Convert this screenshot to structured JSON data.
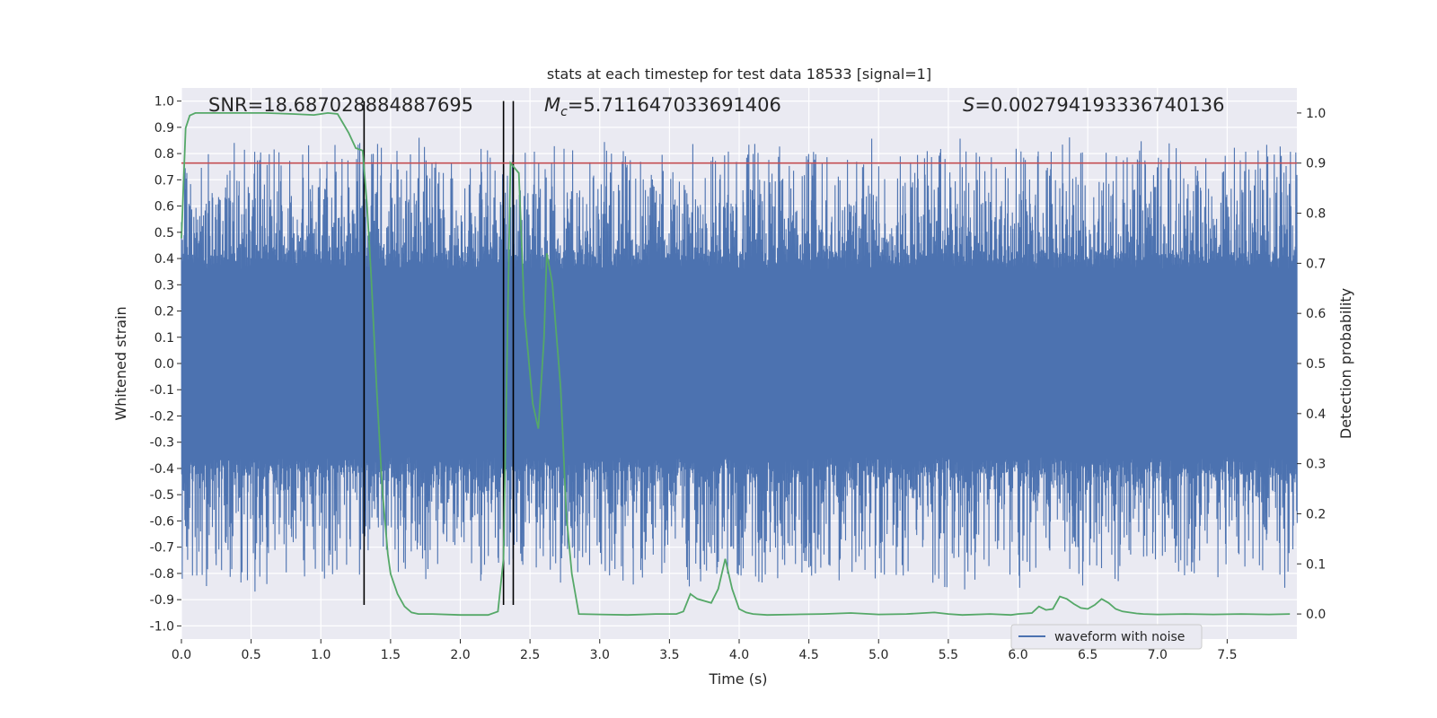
{
  "chart_data": {
    "type": "line",
    "title": "stats at each timestep for test data 18533 [signal=1]",
    "xlabel": "Time (s)",
    "ylabel": "Whitened strain",
    "ylabel_right": "Detection probability",
    "xlim": [
      0,
      8
    ],
    "ylim": [
      -1.05,
      1.05
    ],
    "ylim_right": [
      -0.05,
      1.05
    ],
    "x_ticks": [
      0.0,
      0.5,
      1.0,
      1.5,
      2.0,
      2.5,
      3.0,
      3.5,
      4.0,
      4.5,
      5.0,
      5.5,
      6.0,
      6.5,
      7.0,
      7.5
    ],
    "x_tick_labels": [
      "0.0",
      "0.5",
      "1.0",
      "1.5",
      "2.0",
      "2.5",
      "3.0",
      "3.5",
      "4.0",
      "4.5",
      "5.0",
      "5.5",
      "6.0",
      "6.5",
      "7.0",
      "7.5"
    ],
    "y_ticks": [
      1.0,
      0.9,
      0.8,
      0.7,
      0.6,
      0.5,
      0.4,
      0.3,
      0.2,
      0.1,
      0.0,
      -0.1,
      -0.2,
      -0.3,
      -0.4,
      -0.5,
      -0.6,
      -0.7,
      -0.8,
      -0.9,
      -1.0
    ],
    "y_tick_labels": [
      "1.0",
      "0.9",
      "0.8",
      "0.7",
      "0.6",
      "0.5",
      "0.4",
      "0.3",
      "0.2",
      "0.1",
      "0.0",
      "-0.1",
      "-0.2",
      "-0.3",
      "-0.4",
      "-0.5",
      "-0.6",
      "-0.7",
      "-0.8",
      "-0.9",
      "-1.0"
    ],
    "y_right_ticks": [
      1.0,
      0.9,
      0.8,
      0.7,
      0.6,
      0.5,
      0.4,
      0.3,
      0.2,
      0.1,
      0.0
    ],
    "y_right_tick_labels": [
      "1.0",
      "0.9",
      "0.8",
      "0.7",
      "0.6",
      "0.5",
      "0.4",
      "0.3",
      "0.2",
      "0.1",
      "0.0"
    ],
    "annotations": {
      "snr": "SNR=18.687028884887695",
      "mc_symbol": "M",
      "mc_subscript": "c",
      "mc_value": "=5.711647033691406",
      "s_symbol": "S",
      "s_value": "=0.002794193336740136"
    },
    "threshold": {
      "axis": "right",
      "value": 0.9,
      "color": "#c44e52"
    },
    "vertical_lines": {
      "x": [
        1.31,
        2.31,
        2.38
      ],
      "y_range": [
        -0.92,
        1.0
      ],
      "color": "#000000"
    },
    "series": [
      {
        "name": "waveform with noise",
        "axis": "left",
        "color": "#4c72b0",
        "kind": "dense-noise",
        "sample_rate_hz": 2048,
        "amplitude_envelope": 0.42,
        "extreme_range": [
          -0.9,
          1.0
        ]
      },
      {
        "name": "detection probability",
        "axis": "right",
        "color": "#55a868",
        "x": [
          0.0,
          0.03,
          0.06,
          0.1,
          0.2,
          0.4,
          0.6,
          0.8,
          0.95,
          1.05,
          1.12,
          1.2,
          1.25,
          1.3,
          1.33,
          1.36,
          1.4,
          1.44,
          1.48,
          1.5,
          1.55,
          1.6,
          1.65,
          1.7,
          1.8,
          2.0,
          2.2,
          2.27,
          2.31,
          2.36,
          2.42,
          2.46,
          2.52,
          2.56,
          2.6,
          2.62,
          2.66,
          2.72,
          2.76,
          2.8,
          2.85,
          3.0,
          3.2,
          3.4,
          3.55,
          3.6,
          3.65,
          3.7,
          3.8,
          3.85,
          3.9,
          3.95,
          4.0,
          4.05,
          4.1,
          4.2,
          4.4,
          4.6,
          4.8,
          5.0,
          5.2,
          5.4,
          5.5,
          5.6,
          5.8,
          5.95,
          6.0,
          6.1,
          6.15,
          6.2,
          6.25,
          6.3,
          6.35,
          6.4,
          6.45,
          6.5,
          6.55,
          6.6,
          6.65,
          6.7,
          6.75,
          6.8,
          6.85,
          6.9,
          7.0,
          7.2,
          7.4,
          7.6,
          7.8,
          7.95
        ],
        "y": [
          0.75,
          0.97,
          0.995,
          1.0,
          1.0,
          1.0,
          1.0,
          0.998,
          0.996,
          1.0,
          0.998,
          0.96,
          0.93,
          0.925,
          0.82,
          0.68,
          0.45,
          0.25,
          0.12,
          0.08,
          0.04,
          0.015,
          0.003,
          0.0,
          0.0,
          -0.002,
          -0.002,
          0.005,
          0.11,
          0.9,
          0.88,
          0.6,
          0.42,
          0.37,
          0.55,
          0.72,
          0.66,
          0.45,
          0.2,
          0.08,
          0.0,
          -0.001,
          -0.002,
          0.0,
          0.0,
          0.005,
          0.04,
          0.03,
          0.022,
          0.05,
          0.11,
          0.05,
          0.01,
          0.003,
          0.0,
          -0.002,
          -0.001,
          0.0,
          0.002,
          -0.001,
          0.0,
          0.003,
          0.0,
          -0.002,
          0.0,
          -0.002,
          0.0,
          0.002,
          0.015,
          0.008,
          0.01,
          0.035,
          0.03,
          0.02,
          0.012,
          0.01,
          0.018,
          0.03,
          0.022,
          0.01,
          0.005,
          0.003,
          0.001,
          0.0,
          -0.001,
          0.0,
          -0.001,
          0.0,
          -0.001,
          0.0
        ]
      }
    ],
    "legend": {
      "placement": "bottom-right",
      "entries": [
        "waveform with noise"
      ]
    }
  }
}
